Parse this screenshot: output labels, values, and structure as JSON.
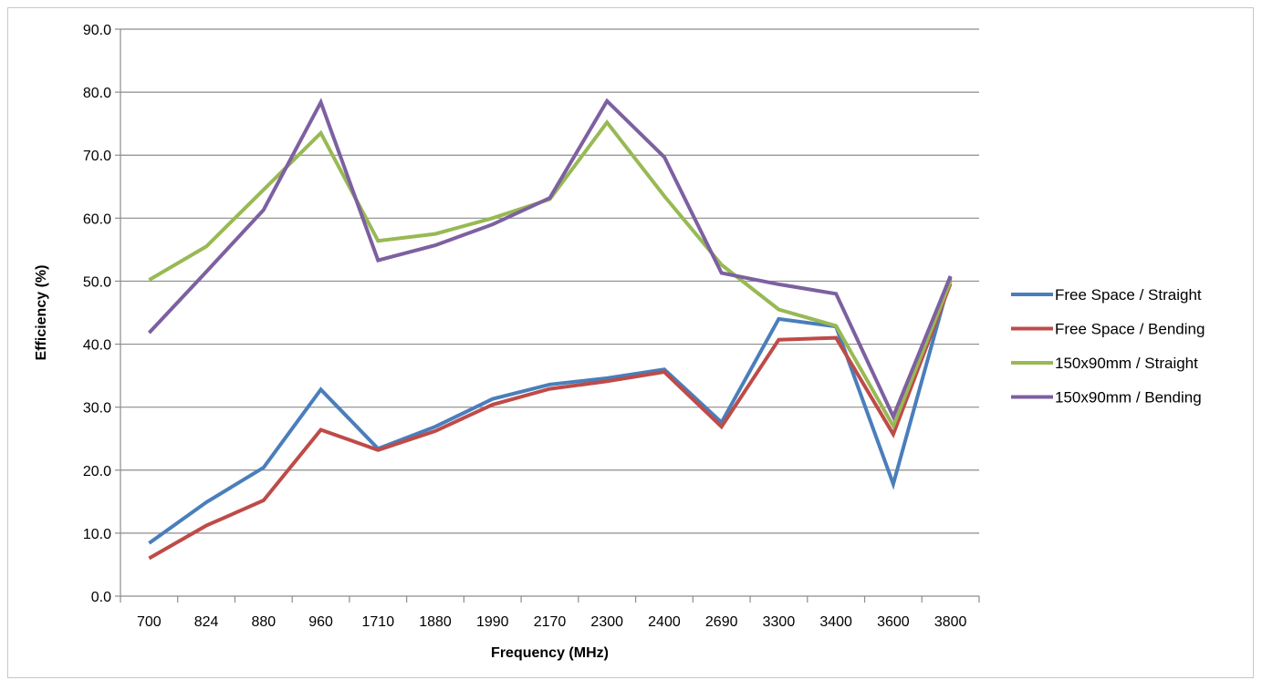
{
  "chart_data": {
    "type": "line",
    "title": "",
    "xlabel": "Frequency  (MHz)",
    "ylabel": "Efficiency (%)",
    "ylim": [
      0,
      90
    ],
    "yticks": [
      "0.0",
      "10.0",
      "20.0",
      "30.0",
      "40.0",
      "50.0",
      "60.0",
      "70.0",
      "80.0",
      "90.0"
    ],
    "grid": "horizontal",
    "legend_position": "right",
    "categories": [
      "700",
      "824",
      "880",
      "960",
      "1710",
      "1880",
      "1990",
      "2170",
      "2300",
      "2400",
      "2690",
      "3300",
      "3400",
      "3600",
      "3800"
    ],
    "series": [
      {
        "name": "Free Space / Straight",
        "color": "#4a7ebb",
        "values": [
          8.4,
          14.9,
          20.4,
          32.8,
          23.4,
          26.9,
          31.3,
          33.6,
          34.6,
          36.0,
          27.6,
          44.0,
          42.8,
          17.8,
          50.6
        ]
      },
      {
        "name": "Free Space / Bending",
        "color": "#be4b48",
        "values": [
          6.0,
          11.2,
          15.2,
          26.4,
          23.2,
          26.2,
          30.4,
          32.9,
          34.1,
          35.6,
          26.9,
          40.7,
          41.0,
          25.7,
          49.6
        ]
      },
      {
        "name": "150x90mm / Straight",
        "color": "#98b954",
        "values": [
          50.2,
          55.5,
          64.5,
          73.5,
          56.4,
          57.5,
          60.0,
          63.0,
          75.2,
          63.5,
          52.6,
          45.5,
          42.9,
          27.0,
          50.0
        ]
      },
      {
        "name": "150x90mm / Bending",
        "color": "#7d60a0",
        "values": [
          41.8,
          51.5,
          61.3,
          78.4,
          53.3,
          55.7,
          59.0,
          63.2,
          78.6,
          69.7,
          51.3,
          49.5,
          48.0,
          28.5,
          50.8
        ]
      }
    ]
  }
}
